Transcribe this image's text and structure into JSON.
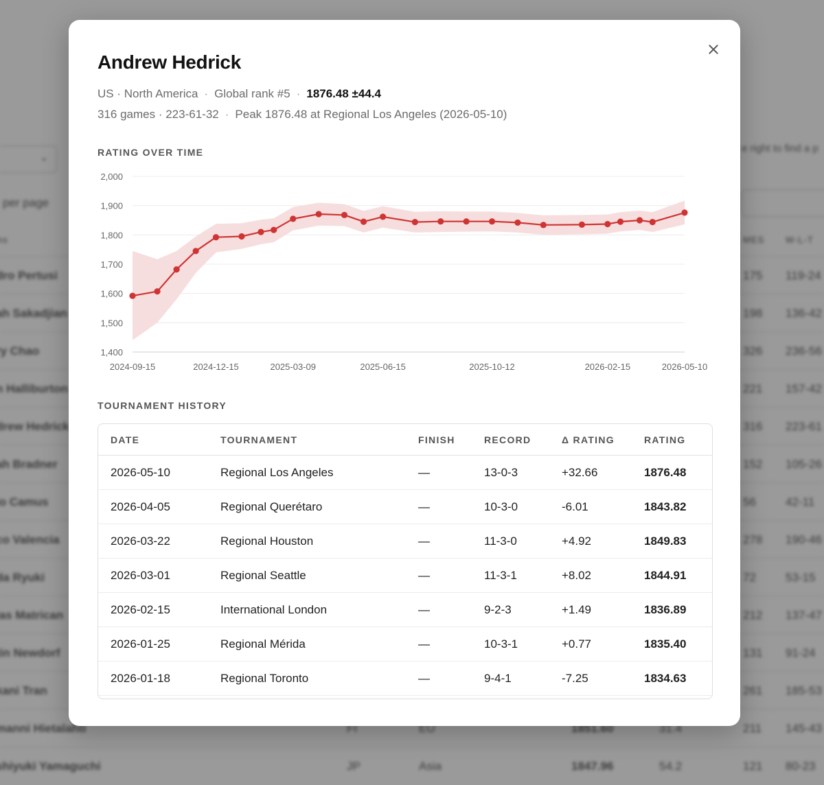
{
  "background": {
    "hint": "e right to find a p",
    "per_page": "per page",
    "columns": [
      "ns",
      "MES",
      "W-L-T"
    ],
    "rows": [
      {
        "name": "dro Pertusi",
        "country": "",
        "region": "",
        "rating": "",
        "dev": "",
        "games": "175",
        "wlt": "119-24"
      },
      {
        "name": "ah Sakadjian",
        "country": "",
        "region": "",
        "rating": "",
        "dev": "",
        "games": "198",
        "wlt": "136-42"
      },
      {
        "name": "ry Chao",
        "country": "",
        "region": "",
        "rating": "",
        "dev": "",
        "games": "326",
        "wlt": "236-56"
      },
      {
        "name": "n Halliburton",
        "country": "",
        "region": "",
        "rating": "",
        "dev": "",
        "games": "221",
        "wlt": "157-42"
      },
      {
        "name": "drew Hedrick",
        "country": "",
        "region": "",
        "rating": "",
        "dev": "",
        "games": "316",
        "wlt": "223-61"
      },
      {
        "name": "ah Bradner",
        "country": "",
        "region": "",
        "rating": "",
        "dev": "",
        "games": "152",
        "wlt": "105-26"
      },
      {
        "name": "lo Camus",
        "country": "",
        "region": "",
        "rating": "",
        "dev": "",
        "games": "56",
        "wlt": "42-11"
      },
      {
        "name": "co Valencia",
        "country": "",
        "region": "",
        "rating": "",
        "dev": "",
        "games": "278",
        "wlt": "190-46"
      },
      {
        "name": "da Ryuki",
        "country": "",
        "region": "",
        "rating": "",
        "dev": "",
        "games": "72",
        "wlt": "53-15"
      },
      {
        "name": "las Matrican",
        "country": "",
        "region": "",
        "rating": "",
        "dev": "",
        "games": "212",
        "wlt": "137-47"
      },
      {
        "name": "tin Newdorf",
        "country": "",
        "region": "",
        "rating": "",
        "dev": "",
        "games": "131",
        "wlt": "91-24"
      },
      {
        "name": "kani Tran",
        "country": "",
        "region": "",
        "rating": "",
        "dev": "",
        "games": "261",
        "wlt": "185-53"
      },
      {
        "name": "manni Hietalahti",
        "country": "FI",
        "region": "EU",
        "rating": "1851.60",
        "dev": "31.4",
        "games": "211",
        "wlt": "145-43"
      },
      {
        "name": "shiyuki Yamaguchi",
        "country": "JP",
        "region": "Asia",
        "rating": "1847.96",
        "dev": "54.2",
        "games": "121",
        "wlt": "80-23"
      }
    ]
  },
  "modal": {
    "close_icon": "close-icon",
    "name": "Andrew Hedrick",
    "location": "US · North America",
    "global_rank": "Global rank #5",
    "rating": "1876.48 ±44.4",
    "games": "316 games · 223-61-32",
    "peak": "Peak 1876.48 at Regional Los Angeles (2026-05-10)",
    "chart_title": "RATING OVER TIME",
    "history_title": "TOURNAMENT HISTORY"
  },
  "chart_data": {
    "type": "line",
    "title": "",
    "xlabel": "",
    "ylabel": "",
    "x_tick_labels": [
      "2024-09-15",
      "2024-12-15",
      "2025-03-09",
      "2025-06-15",
      "2025-10-12",
      "2026-02-15",
      "2026-05-10"
    ],
    "y_tick_labels": [
      "2,000",
      "1,900",
      "1,800",
      "1,700",
      "1,600",
      "1,500",
      "1,400"
    ],
    "ylim": [
      1400,
      2000
    ],
    "grid": true,
    "line_color": "#cf3434",
    "band_color": "#f7dede",
    "points": [
      {
        "x": "2024-09-15",
        "y": 1592,
        "lo": 1440,
        "hi": 1745
      },
      {
        "x": "2024-10-12",
        "y": 1607,
        "lo": 1500,
        "hi": 1717
      },
      {
        "x": "2024-11-02",
        "y": 1682,
        "lo": 1580,
        "hi": 1745
      },
      {
        "x": "2024-11-23",
        "y": 1745,
        "lo": 1670,
        "hi": 1795
      },
      {
        "x": "2024-12-15",
        "y": 1792,
        "lo": 1740,
        "hi": 1838
      },
      {
        "x": "2025-01-12",
        "y": 1795,
        "lo": 1752,
        "hi": 1840
      },
      {
        "x": "2025-02-02",
        "y": 1810,
        "lo": 1768,
        "hi": 1852
      },
      {
        "x": "2025-02-16",
        "y": 1817,
        "lo": 1775,
        "hi": 1857
      },
      {
        "x": "2025-03-09",
        "y": 1855,
        "lo": 1815,
        "hi": 1895
      },
      {
        "x": "2025-04-06",
        "y": 1871,
        "lo": 1832,
        "hi": 1910
      },
      {
        "x": "2025-05-04",
        "y": 1868,
        "lo": 1830,
        "hi": 1905
      },
      {
        "x": "2025-05-25",
        "y": 1845,
        "lo": 1808,
        "hi": 1882
      },
      {
        "x": "2025-06-15",
        "y": 1862,
        "lo": 1825,
        "hi": 1898
      },
      {
        "x": "2025-07-20",
        "y": 1844,
        "lo": 1808,
        "hi": 1879
      },
      {
        "x": "2025-08-17",
        "y": 1846,
        "lo": 1810,
        "hi": 1881
      },
      {
        "x": "2025-09-14",
        "y": 1846,
        "lo": 1811,
        "hi": 1880
      },
      {
        "x": "2025-10-12",
        "y": 1846,
        "lo": 1812,
        "hi": 1880
      },
      {
        "x": "2025-11-09",
        "y": 1842,
        "lo": 1808,
        "hi": 1875
      },
      {
        "x": "2025-12-07",
        "y": 1834,
        "lo": 1800,
        "hi": 1867
      },
      {
        "x": "2026-01-18",
        "y": 1835,
        "lo": 1802,
        "hi": 1868
      },
      {
        "x": "2026-02-15",
        "y": 1837,
        "lo": 1804,
        "hi": 1870
      },
      {
        "x": "2026-03-01",
        "y": 1845,
        "lo": 1812,
        "hi": 1878
      },
      {
        "x": "2026-03-22",
        "y": 1850,
        "lo": 1817,
        "hi": 1883
      },
      {
        "x": "2026-04-05",
        "y": 1844,
        "lo": 1810,
        "hi": 1878
      },
      {
        "x": "2026-05-10",
        "y": 1876,
        "lo": 1836,
        "hi": 1917
      }
    ]
  },
  "history": {
    "headers": [
      "DATE",
      "TOURNAMENT",
      "FINISH",
      "RECORD",
      "Δ RATING",
      "RATING"
    ],
    "rows": [
      {
        "date": "2026-05-10",
        "tournament": "Regional Los Angeles",
        "finish": "—",
        "record": "13-0-3",
        "delta": "+32.66",
        "rating": "1876.48"
      },
      {
        "date": "2026-04-05",
        "tournament": "Regional Querétaro",
        "finish": "—",
        "record": "10-3-0",
        "delta": "-6.01",
        "rating": "1843.82"
      },
      {
        "date": "2026-03-22",
        "tournament": "Regional Houston",
        "finish": "—",
        "record": "11-3-0",
        "delta": "+4.92",
        "rating": "1849.83"
      },
      {
        "date": "2026-03-01",
        "tournament": "Regional Seattle",
        "finish": "—",
        "record": "11-3-1",
        "delta": "+8.02",
        "rating": "1844.91"
      },
      {
        "date": "2026-02-15",
        "tournament": "International London",
        "finish": "—",
        "record": "9-2-3",
        "delta": "+1.49",
        "rating": "1836.89"
      },
      {
        "date": "2026-01-25",
        "tournament": "Regional Mérida",
        "finish": "—",
        "record": "10-3-1",
        "delta": "+0.77",
        "rating": "1835.40"
      },
      {
        "date": "2026-01-18",
        "tournament": "Regional Toronto",
        "finish": "—",
        "record": "9-4-1",
        "delta": "-7.25",
        "rating": "1834.63"
      }
    ]
  }
}
